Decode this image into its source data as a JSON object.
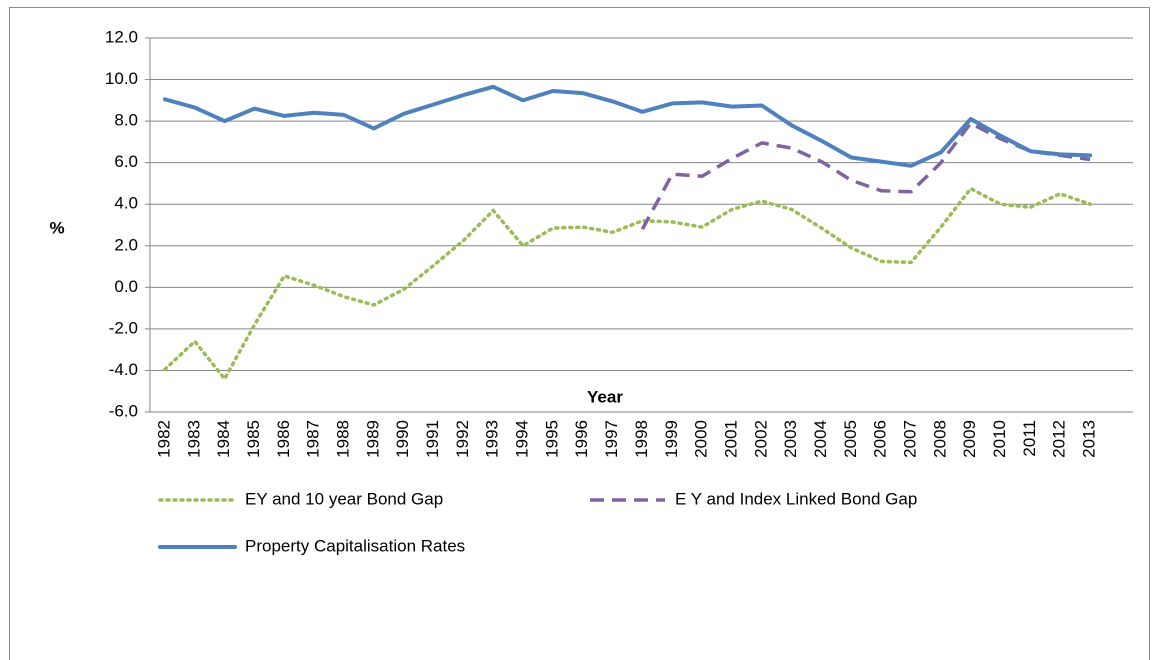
{
  "chart_data": {
    "type": "line",
    "x_label": "Year",
    "y_label": "%",
    "categories": [
      "1982",
      "1983",
      "1984",
      "1985",
      "1986",
      "1987",
      "1988",
      "1989",
      "1990",
      "1991",
      "1992",
      "1993",
      "1994",
      "1995",
      "1996",
      "1997",
      "1998",
      "1999",
      "2000",
      "2001",
      "2002",
      "2003",
      "2004",
      "2005",
      "2006",
      "2007",
      "2008",
      "2009",
      "2010",
      "2011",
      "2012",
      "2013"
    ],
    "series": [
      {
        "name": "EY and 10 year Bond Gap",
        "color": "#9bbb59",
        "style": "dotted",
        "values": [
          -3.95,
          -2.6,
          -4.4,
          -1.8,
          0.55,
          0.1,
          -0.45,
          -0.85,
          -0.1,
          1.05,
          2.25,
          3.7,
          2.0,
          2.85,
          2.9,
          2.65,
          3.2,
          3.15,
          2.9,
          3.75,
          4.15,
          3.75,
          2.85,
          1.9,
          1.25,
          1.2,
          2.9,
          4.75,
          4.0,
          3.85,
          4.5,
          4.0
        ]
      },
      {
        "name": "E Y and Index Linked Bond Gap",
        "color": "#8064a2",
        "style": "dashed",
        "values": [
          null,
          null,
          null,
          null,
          null,
          null,
          null,
          null,
          null,
          null,
          null,
          null,
          null,
          null,
          null,
          null,
          2.8,
          5.45,
          5.35,
          6.2,
          6.95,
          6.7,
          6.05,
          5.15,
          4.65,
          4.6,
          6.0,
          7.9,
          7.15,
          6.55,
          6.35,
          6.15
        ]
      },
      {
        "name": "Property Capitalisation Rates",
        "color": "#4f81bd",
        "style": "solid",
        "values": [
          9.05,
          8.65,
          8.0,
          8.6,
          8.25,
          8.4,
          8.3,
          7.65,
          8.35,
          8.8,
          9.25,
          9.65,
          9.0,
          9.45,
          9.35,
          8.95,
          8.45,
          8.85,
          8.9,
          8.7,
          8.75,
          7.8,
          7.05,
          6.25,
          6.05,
          5.85,
          6.5,
          8.1,
          7.3,
          6.55,
          6.4,
          6.35
        ]
      }
    ],
    "ylim": [
      -6,
      12
    ],
    "yticks": [
      {
        "value": -6,
        "label": "-6.0"
      },
      {
        "value": -4,
        "label": "-4.0"
      },
      {
        "value": -2,
        "label": "-2.0"
      },
      {
        "value": 0,
        "label": "0.0"
      },
      {
        "value": 2,
        "label": "2.0"
      },
      {
        "value": 4,
        "label": "4.0"
      },
      {
        "value": 6,
        "label": "6.0"
      },
      {
        "value": 8,
        "label": "8.0"
      },
      {
        "value": 10,
        "label": "10.0"
      },
      {
        "value": 12,
        "label": "12.0"
      }
    ],
    "grid": true,
    "legend": "bottom"
  }
}
